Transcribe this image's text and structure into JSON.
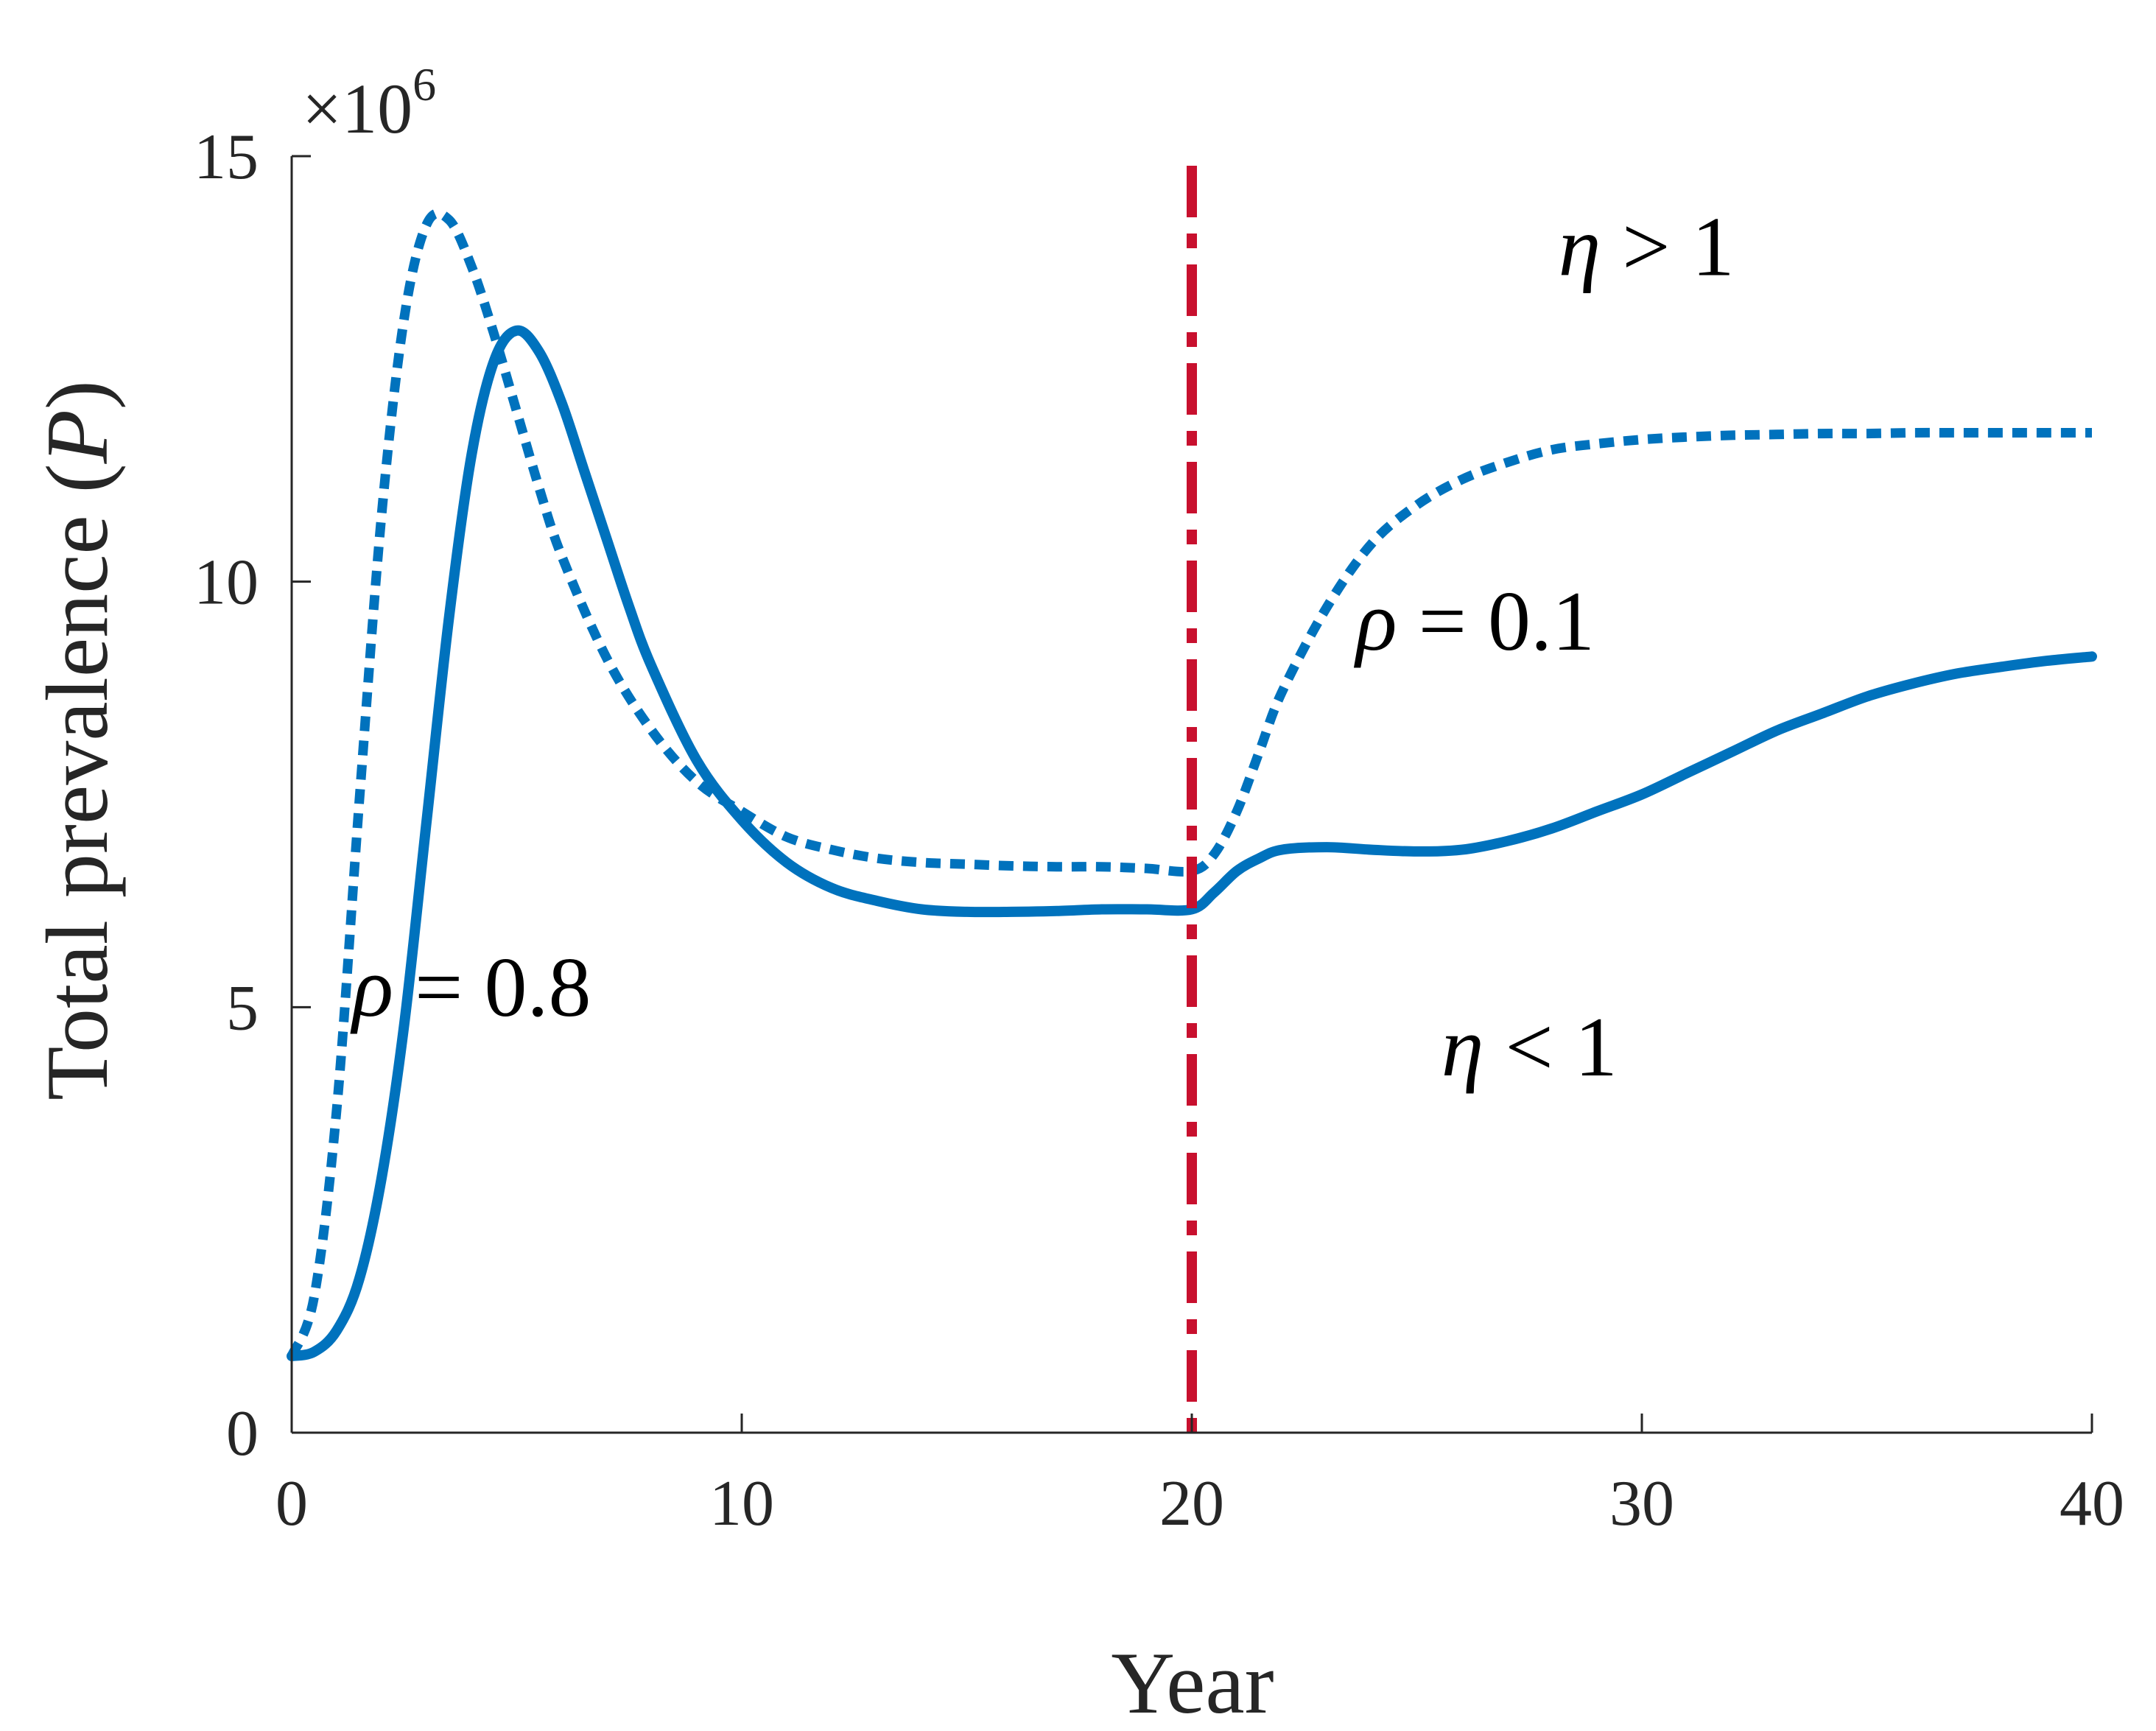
{
  "chart_data": {
    "type": "line",
    "xlabel": "Year",
    "ylabel": "Total prevalence",
    "ylabel_symbol": "P",
    "y_multiplier_base": "×10",
    "y_multiplier_exp": "6",
    "xlim": [
      0,
      40
    ],
    "ylim": [
      0,
      15
    ],
    "x_ticks": [
      0,
      10,
      20,
      30,
      40
    ],
    "x_tick_labels": [
      "0",
      "10",
      "20",
      "30",
      "40"
    ],
    "y_ticks": [
      0,
      5,
      10,
      15
    ],
    "y_tick_labels": [
      "0",
      "5",
      "10",
      "15"
    ],
    "grid": false,
    "vertical_line": {
      "x": 20,
      "color": "#c8102e",
      "style": "dashed"
    },
    "series": [
      {
        "style": "solid",
        "color": "#0072bd",
        "x": [
          0,
          0.5,
          1,
          1.5,
          2,
          2.5,
          3,
          3.5,
          4,
          4.5,
          5,
          5.5,
          6,
          6.5,
          7,
          7.5,
          8,
          9,
          10,
          11,
          12,
          13,
          14,
          15,
          16,
          17,
          18,
          19,
          20,
          20.5,
          21,
          21.5,
          22,
          23,
          24,
          25,
          26,
          27,
          28,
          29,
          30,
          31,
          32,
          33,
          34,
          35,
          36,
          37,
          38,
          39,
          40
        ],
        "y": [
          0.9,
          0.95,
          1.2,
          1.8,
          3.0,
          4.8,
          7.2,
          9.6,
          11.5,
          12.6,
          12.95,
          12.7,
          12.1,
          11.3,
          10.5,
          9.7,
          9.0,
          7.9,
          7.2,
          6.7,
          6.4,
          6.25,
          6.15,
          6.12,
          6.12,
          6.13,
          6.15,
          6.15,
          6.15,
          6.35,
          6.6,
          6.75,
          6.85,
          6.88,
          6.85,
          6.83,
          6.85,
          6.95,
          7.1,
          7.3,
          7.5,
          7.75,
          8.0,
          8.25,
          8.45,
          8.65,
          8.8,
          8.92,
          9.0,
          9.07,
          9.12
        ]
      },
      {
        "style": "dotted",
        "color": "#0072bd",
        "x": [
          0,
          0.5,
          1,
          1.5,
          2,
          2.5,
          3,
          3.5,
          4,
          4.5,
          5,
          5.5,
          6,
          7,
          8,
          9,
          10,
          11,
          12,
          13,
          14,
          15,
          16,
          17,
          18,
          19,
          20,
          20.5,
          21,
          21.5,
          22,
          23,
          24,
          25,
          26,
          27,
          28,
          29,
          30,
          31,
          32,
          33,
          34,
          35,
          36,
          37,
          38,
          39,
          40
        ],
        "y": [
          0.9,
          1.6,
          3.8,
          7.4,
          10.8,
          13.1,
          14.2,
          14.25,
          13.7,
          12.9,
          12.0,
          11.1,
          10.3,
          9.1,
          8.25,
          7.65,
          7.3,
          7.0,
          6.85,
          6.75,
          6.7,
          6.68,
          6.66,
          6.65,
          6.65,
          6.63,
          6.6,
          6.8,
          7.3,
          8.0,
          8.7,
          9.7,
          10.45,
          10.9,
          11.2,
          11.4,
          11.55,
          11.62,
          11.67,
          11.7,
          11.72,
          11.73,
          11.74,
          11.74,
          11.75,
          11.75,
          11.75,
          11.75,
          11.75
        ]
      }
    ],
    "annotations": [
      {
        "greek": "η",
        "rest": " > 1",
        "x": 30.1,
        "y": 13.6
      },
      {
        "greek": "ρ",
        "rest": " = 0.1",
        "x": 26.3,
        "y": 9.2
      },
      {
        "greek": "ρ",
        "rest": " = 0.8",
        "x": 4.0,
        "y": 4.9
      },
      {
        "greek": "η",
        "rest": " < 1",
        "x": 27.5,
        "y": 4.2
      }
    ]
  }
}
